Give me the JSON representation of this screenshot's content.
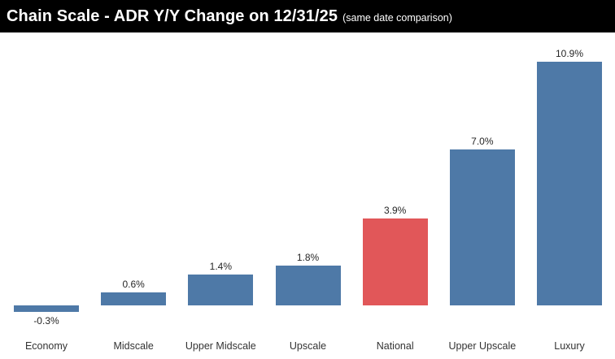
{
  "header": {
    "title": "Chain Scale - ADR Y/Y Change on 12/31/25",
    "subtitle": "(same date comparison)"
  },
  "chart_data": {
    "type": "bar",
    "title": "Chain Scale - ADR Y/Y Change on 12/31/25",
    "subtitle": "(same date comparison)",
    "categories": [
      "Economy",
      "Midscale",
      "Upper Midscale",
      "Upscale",
      "National",
      "Upper Upscale",
      "Luxury"
    ],
    "values": [
      -0.3,
      0.6,
      1.4,
      1.8,
      3.9,
      7.0,
      10.9
    ],
    "value_labels": [
      "-0.3%",
      "0.6%",
      "1.4%",
      "1.8%",
      "3.9%",
      "7.0%",
      "10.9%"
    ],
    "unit": "%",
    "highlight_category": "National",
    "colors": {
      "default_bar": "#4e79a7",
      "highlight_bar": "#e15759",
      "value_label_text": "#262626",
      "category_label_text": "#333333",
      "title_bg": "#000000",
      "title_text": "#ffffff"
    },
    "ylim": [
      -0.5,
      11.5
    ],
    "grid": false,
    "legend": false,
    "axis_lines": false,
    "data_labels": true,
    "xlabel": "",
    "ylabel": ""
  }
}
